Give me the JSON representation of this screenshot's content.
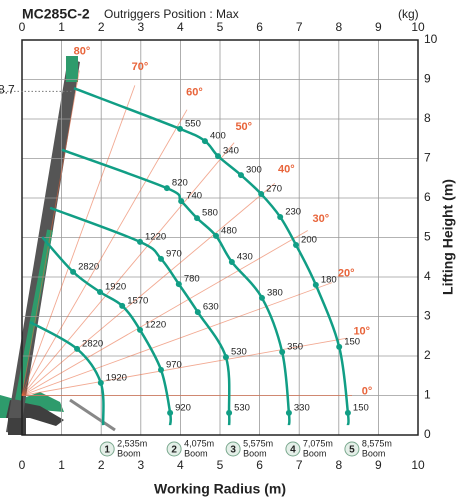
{
  "chart_data": {
    "type": "load-chart",
    "title": "MC285C-2",
    "subtitle": "Outriggers Position : Max",
    "unit_label": "(kg)",
    "xlabel": "Working Radius (m)",
    "ylabel": "Lifting Height (m)",
    "xlim": [
      0,
      10
    ],
    "ylim": [
      0,
      10
    ],
    "xticks": [
      0,
      1,
      2,
      3,
      4,
      5,
      6,
      7,
      8,
      9,
      10
    ],
    "yticks": [
      0,
      1,
      2,
      3,
      4,
      5,
      6,
      7,
      8,
      9,
      10
    ],
    "grid": true,
    "max_height": 8.7,
    "angle_color": "#e8643a",
    "boom_color": "#119e85",
    "angles": [
      {
        "value": 0,
        "label": "0°"
      },
      {
        "value": 10,
        "label": "10°"
      },
      {
        "value": 20,
        "label": "20°"
      },
      {
        "value": 30,
        "label": "30°"
      },
      {
        "value": 40,
        "label": "40°"
      },
      {
        "value": 50,
        "label": "50°"
      },
      {
        "value": 60,
        "label": "60°"
      },
      {
        "value": 70,
        "label": "70°"
      },
      {
        "value": 80,
        "label": "80°"
      }
    ],
    "booms": [
      {
        "name": "1",
        "length": "2,535m",
        "unit": "Boom",
        "x": [
          0.2,
          1.39,
          1.99,
          2.05
        ],
        "y": [
          2.86,
          2.18,
          1.32,
          0.25
        ],
        "loads": [
          null,
          2820,
          1920,
          null
        ]
      },
      {
        "name": "2",
        "length": "4,075m",
        "unit": "Boom",
        "x": [
          0.51,
          1.29,
          1.97,
          2.53,
          2.98,
          3.51,
          3.74,
          3.74
        ],
        "y": [
          5.01,
          4.13,
          3.62,
          3.27,
          2.66,
          1.65,
          0.56,
          0.25
        ],
        "loads": [
          null,
          2820,
          1920,
          1570,
          1220,
          970,
          920,
          null
        ]
      },
      {
        "name": "3",
        "length": "5,575m",
        "unit": "Boom",
        "x": [
          0.71,
          2.98,
          3.51,
          3.96,
          4.44,
          5.15,
          5.23,
          5.23
        ],
        "y": [
          5.75,
          4.89,
          4.46,
          3.82,
          3.11,
          1.97,
          0.56,
          0.25
        ],
        "loads": [
          null,
          1220,
          970,
          780,
          630,
          530,
          530,
          null
        ]
      },
      {
        "name": "4",
        "length": "7,075m",
        "unit": "Boom",
        "x": [
          1.01,
          3.66,
          4.02,
          4.42,
          4.9,
          5.3,
          6.06,
          6.57,
          6.74,
          6.74
        ],
        "y": [
          7.22,
          6.25,
          5.92,
          5.49,
          5.04,
          4.38,
          3.47,
          2.1,
          0.56,
          0.25
        ],
        "loads": [
          null,
          820,
          740,
          580,
          480,
          430,
          380,
          350,
          330,
          null
        ]
      },
      {
        "name": "5",
        "length": "8,575m",
        "unit": "Boom",
        "x": [
          1.31,
          3.99,
          4.62,
          4.95,
          5.53,
          6.04,
          6.52,
          6.92,
          7.42,
          8.01,
          8.23,
          8.23
        ],
        "y": [
          8.78,
          7.75,
          7.44,
          7.06,
          6.58,
          6.1,
          5.52,
          4.81,
          3.8,
          2.23,
          0.56,
          0.25
        ],
        "loads": [
          null,
          550,
          400,
          340,
          300,
          270,
          230,
          200,
          180,
          150,
          150,
          null
        ]
      }
    ]
  }
}
